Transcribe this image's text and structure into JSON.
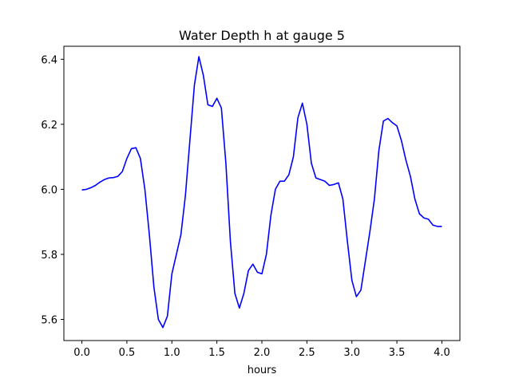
{
  "chart_data": {
    "type": "line",
    "title": "Water Depth h at gauge 5",
    "xlabel": "hours",
    "ylabel": "",
    "xlim": [
      -0.2,
      4.2
    ],
    "ylim": [
      5.535,
      6.44
    ],
    "xticks": [
      0.0,
      0.5,
      1.0,
      1.5,
      2.0,
      2.5,
      3.0,
      3.5,
      4.0
    ],
    "xtick_labels": [
      "0.0",
      "0.5",
      "1.0",
      "1.5",
      "2.0",
      "2.5",
      "3.0",
      "3.5",
      "4.0"
    ],
    "yticks": [
      5.6,
      5.8,
      6.0,
      6.2,
      6.4
    ],
    "ytick_labels": [
      "5.6",
      "5.8",
      "6.0",
      "6.2",
      "6.4"
    ],
    "grid": false,
    "colors": {
      "line": "#0000ff",
      "axes": "#000000",
      "background": "#ffffff"
    },
    "series": [
      {
        "x": [
          0.0,
          0.05,
          0.1,
          0.15,
          0.2,
          0.25,
          0.3,
          0.35,
          0.4,
          0.45,
          0.5,
          0.55,
          0.6,
          0.65,
          0.7,
          0.75,
          0.8,
          0.85,
          0.9,
          0.95,
          1.0,
          1.05,
          1.1,
          1.15,
          1.2,
          1.25,
          1.3,
          1.35,
          1.4,
          1.45,
          1.5,
          1.55,
          1.6,
          1.65,
          1.7,
          1.75,
          1.8,
          1.85,
          1.9,
          1.95,
          2.0,
          2.05,
          2.1,
          2.15,
          2.2,
          2.25,
          2.3,
          2.35,
          2.4,
          2.45,
          2.5,
          2.55,
          2.6,
          2.65,
          2.7,
          2.75,
          2.8,
          2.85,
          2.9,
          2.95,
          3.0,
          3.05,
          3.1,
          3.15,
          3.2,
          3.25,
          3.3,
          3.35,
          3.4,
          3.45,
          3.5,
          3.55,
          3.6,
          3.65,
          3.7,
          3.75,
          3.8,
          3.85,
          3.9,
          3.95,
          4.0
        ],
        "values": [
          5.998,
          6.0,
          6.005,
          6.012,
          6.022,
          6.03,
          6.035,
          6.036,
          6.04,
          6.055,
          6.095,
          6.125,
          6.128,
          6.095,
          6.0,
          5.86,
          5.7,
          5.6,
          5.575,
          5.61,
          5.74,
          5.8,
          5.86,
          5.98,
          6.15,
          6.32,
          6.408,
          6.35,
          6.26,
          6.255,
          6.28,
          6.25,
          6.08,
          5.84,
          5.68,
          5.635,
          5.68,
          5.75,
          5.77,
          5.745,
          5.74,
          5.8,
          5.92,
          6.0,
          6.025,
          6.025,
          6.045,
          6.1,
          6.22,
          6.265,
          6.2,
          6.08,
          6.035,
          6.03,
          6.025,
          6.012,
          6.015,
          6.02,
          5.97,
          5.84,
          5.72,
          5.67,
          5.69,
          5.78,
          5.87,
          5.97,
          6.12,
          6.21,
          6.218,
          6.205,
          6.195,
          6.15,
          6.09,
          6.04,
          5.97,
          5.925,
          5.912,
          5.908,
          5.89,
          5.886,
          5.886
        ]
      }
    ]
  }
}
